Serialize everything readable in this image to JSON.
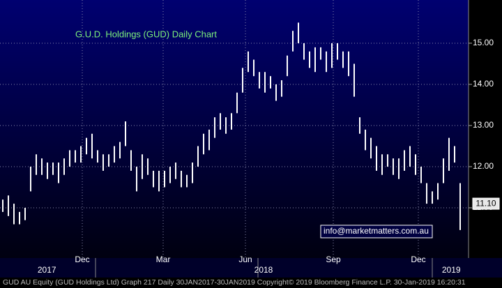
{
  "chart_data": {
    "type": "range",
    "title": "G.U.D. Holdings (GUD) Daily Chart",
    "annotation": "info@marketmatters.com.au",
    "footer": "GUD AU Equity (GUD Holdings Ltd) Graph 217  Daily 30JAN2017-30JAN2019 Copyright© 2019 Bloomberg Finance L.P. 30-Jan-2019 16:20:31",
    "color": "#ffffff",
    "low": [
      10.9,
      10.8,
      10.6,
      10.6,
      10.7,
      11.4,
      11.8,
      11.8,
      11.7,
      11.8,
      11.6,
      11.8,
      12.0,
      12.1,
      12.1,
      12.3,
      12.2,
      12.1,
      11.9,
      12.0,
      12.1,
      12.2,
      12.5,
      11.9,
      11.4,
      11.7,
      11.8,
      11.5,
      11.4,
      11.5,
      11.6,
      11.7,
      11.5,
      11.5,
      11.6,
      12.0,
      12.3,
      12.4,
      12.7,
      12.9,
      12.8,
      12.9,
      13.3,
      13.8,
      14.3,
      14.2,
      13.9,
      13.8,
      13.9,
      13.6,
      13.7,
      14.2,
      14.8,
      15.0,
      14.6,
      14.4,
      14.3,
      14.6,
      14.3,
      14.4,
      14.6,
      14.4,
      14.2,
      13.7,
      12.8,
      12.4,
      12.2,
      11.9,
      11.8,
      12.0,
      11.8,
      11.7,
      11.9,
      12.0,
      11.8,
      11.6,
      11.1,
      11.1,
      11.2,
      11.6,
      11.9,
      12.1,
      10.46
    ],
    "high": [
      11.2,
      11.3,
      11.1,
      10.9,
      11.0,
      12.0,
      12.3,
      12.2,
      12.1,
      12.1,
      12.1,
      12.2,
      12.4,
      12.4,
      12.5,
      12.7,
      12.8,
      12.4,
      12.3,
      12.3,
      12.5,
      12.6,
      13.1,
      12.4,
      12.0,
      12.3,
      12.2,
      11.9,
      11.9,
      11.9,
      12.0,
      12.1,
      11.9,
      11.8,
      12.1,
      12.5,
      12.8,
      12.9,
      13.2,
      13.3,
      13.2,
      13.3,
      13.8,
      14.4,
      14.8,
      14.6,
      14.3,
      14.3,
      14.2,
      14.0,
      14.1,
      14.7,
      15.3,
      15.5,
      15.0,
      14.8,
      14.9,
      14.9,
      14.8,
      15.0,
      15.0,
      14.8,
      14.8,
      14.5,
      13.2,
      12.9,
      12.7,
      12.5,
      12.3,
      12.3,
      12.2,
      12.2,
      12.4,
      12.5,
      12.3,
      12.0,
      11.6,
      11.4,
      11.6,
      12.2,
      12.7,
      12.5,
      11.6
    ],
    "last_price": {
      "value": 11.1,
      "label": "11.10"
    },
    "xlim": [
      0,
      84
    ],
    "xticks": [
      {
        "value": 14.75,
        "label": "Dec"
      },
      {
        "value": 29.25,
        "label": "Mar"
      },
      {
        "value": 44,
        "label": "Jun"
      },
      {
        "value": 59.75,
        "label": "Sep"
      },
      {
        "value": 75,
        "label": "Dec"
      }
    ],
    "year_ticks": [
      {
        "value": 8.4,
        "label": "2017"
      },
      {
        "value": 47.25,
        "label": "2018"
      },
      {
        "value": 80.9,
        "label": "2019"
      }
    ],
    "ylim": [
      9.78,
      16.05
    ],
    "yticks": [
      {
        "value": 11,
        "label": "11.00"
      },
      {
        "value": 12,
        "label": "12.00"
      },
      {
        "value": 13,
        "label": "13.00"
      },
      {
        "value": 14,
        "label": "14.00"
      },
      {
        "value": 15,
        "label": "15.00"
      }
    ],
    "grid": true
  }
}
